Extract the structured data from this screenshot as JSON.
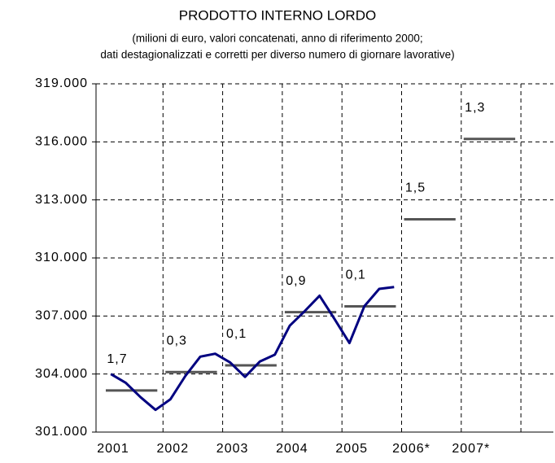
{
  "chart_data": {
    "type": "line",
    "title": "PRODOTTO INTERNO LORDO",
    "subtitle": [
      "(milioni di euro, valori concatenati, anno di riferimento 2000;",
      "dati destagionalizzati e corretti per diverso numero di giornare lavorative)"
    ],
    "categories": [
      "2001",
      "2002",
      "2003",
      "2004",
      "2005",
      "2006*",
      "2007*"
    ],
    "quarterly": {
      "color": "#000080",
      "values": [
        304000,
        303550,
        302800,
        302150,
        302700,
        303900,
        304900,
        305050,
        304600,
        303850,
        304650,
        305000,
        306500,
        307250,
        308050,
        306850,
        305600,
        307500,
        308400,
        308500
      ]
    },
    "annual": {
      "color": "#555555",
      "values": [
        303150,
        304100,
        304450,
        307200,
        307500,
        312000,
        316150
      ],
      "growth_labels": [
        "1,7",
        "0,3",
        "0,1",
        "0,9",
        "0,1",
        "1,5",
        "1,3"
      ]
    },
    "ylim": [
      301000,
      319000
    ],
    "yticks": [
      {
        "value": 301000,
        "label": "301.000"
      },
      {
        "value": 304000,
        "label": "304.000"
      },
      {
        "value": 307000,
        "label": "307.000"
      },
      {
        "value": 310000,
        "label": "310.000"
      },
      {
        "value": 313000,
        "label": "313.000"
      },
      {
        "value": 316000,
        "label": "316.000"
      },
      {
        "value": 319000,
        "label": "319.000"
      }
    ],
    "grid": true
  }
}
